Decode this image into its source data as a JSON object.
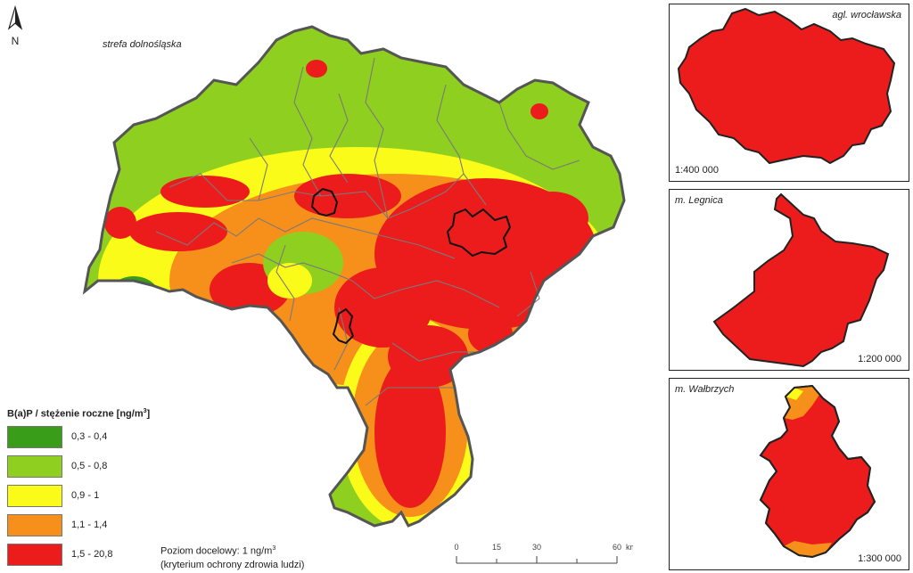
{
  "map": {
    "north_label": "N",
    "zone_label": "strefa dolnośląska",
    "legend": {
      "title_main": "B(a)P / stężenie roczne [ng/m",
      "title_sup": "3",
      "title_close": "]",
      "items": [
        {
          "label": "0,3 - 0,4",
          "color": "#3a9d1a"
        },
        {
          "label": "0,5 - 0,8",
          "color": "#8fcf1f"
        },
        {
          "label": "0,9 - 1",
          "color": "#fbfb19"
        },
        {
          "label": "1,1 - 1,4",
          "color": "#f78f1b"
        },
        {
          "label": "1,5 - 20,8",
          "color": "#ec1c1c"
        }
      ]
    },
    "target_line1_prefix": "Poziom docelowy: 1 ng/m",
    "target_sup": "3",
    "target_line2": "(kryterium ochrony zdrowia ludzi)",
    "scale_ticks": [
      "0",
      "15",
      "30",
      "60"
    ],
    "scale_unit": "km",
    "insets": [
      {
        "name": "agl. wrocławska",
        "scale": "1:400 000"
      },
      {
        "name": "m. Legnica",
        "scale": "1:200 000"
      },
      {
        "name": "m. Wałbrzych",
        "scale": "1:300 000"
      }
    ]
  }
}
